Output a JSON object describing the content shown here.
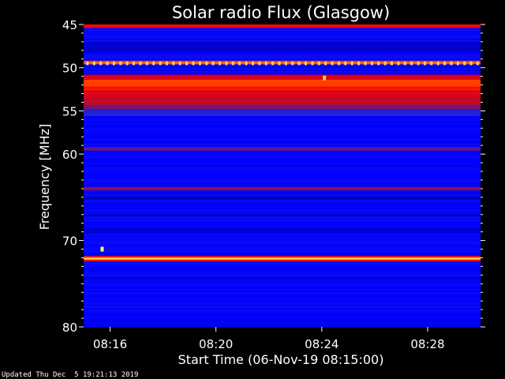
{
  "footer": "Updated Thu Dec  5 19:21:13 2019",
  "chart_data": {
    "type": "heatmap",
    "title": "Solar radio Flux (Glasgow)",
    "xlabel": "Start Time (06-Nov-19 08:15:00)",
    "ylabel": "Frequency [MHz]",
    "x_unit": "minutes after 08:15:00",
    "xlim": [
      0,
      15
    ],
    "ylim": [
      45,
      80
    ],
    "y_axis_inverted": true,
    "x_ticks": [
      {
        "value": 1,
        "label": "08:16"
      },
      {
        "value": 5,
        "label": "08:20"
      },
      {
        "value": 9,
        "label": "08:24"
      },
      {
        "value": 13,
        "label": "08:28"
      }
    ],
    "y_ticks": [
      {
        "value": 45,
        "label": "45"
      },
      {
        "value": 50,
        "label": "50"
      },
      {
        "value": 55,
        "label": "55"
      },
      {
        "value": 60,
        "label": "60"
      },
      {
        "value": 70,
        "label": "70"
      },
      {
        "value": 80,
        "label": "80"
      }
    ],
    "colormap": [
      "#000050",
      "#0000a0",
      "#0000ff",
      "#2a2ad0",
      "#8a1050",
      "#ff0000",
      "#ffa000",
      "#ffff80"
    ],
    "background_level": 0.3,
    "bands": [
      {
        "freq_min": 45.0,
        "freq_max": 45.4,
        "level": 0.72
      },
      {
        "freq_min": 47.0,
        "freq_max": 48.2,
        "level": 0.22
      },
      {
        "freq_min": 49.3,
        "freq_max": 49.7,
        "level": 0.8,
        "dashed": true
      },
      {
        "freq_min": 50.8,
        "freq_max": 51.4,
        "level": 0.66
      },
      {
        "freq_min": 51.4,
        "freq_max": 52.6,
        "level": 0.75
      },
      {
        "freq_min": 52.6,
        "freq_max": 53.5,
        "level": 0.68
      },
      {
        "freq_min": 53.5,
        "freq_max": 54.5,
        "level": 0.63
      },
      {
        "freq_min": 54.5,
        "freq_max": 54.9,
        "level": 0.55
      },
      {
        "freq_min": 54.9,
        "freq_max": 55.6,
        "level": 0.4
      },
      {
        "freq_min": 59.2,
        "freq_max": 59.6,
        "level": 0.5
      },
      {
        "freq_min": 63.8,
        "freq_max": 64.3,
        "level": 0.55
      },
      {
        "freq_min": 65.0,
        "freq_max": 65.3,
        "level": 0.15
      },
      {
        "freq_min": 67.0,
        "freq_max": 67.3,
        "level": 0.15
      },
      {
        "freq_min": 68.7,
        "freq_max": 69.2,
        "level": 0.2
      },
      {
        "freq_min": 71.9,
        "freq_max": 72.0,
        "level": 0.75
      },
      {
        "freq_min": 72.0,
        "freq_max": 72.3,
        "level": 0.98
      },
      {
        "freq_min": 72.3,
        "freq_max": 72.4,
        "level": 0.75
      },
      {
        "freq_min": 74.2,
        "freq_max": 74.5,
        "level": 0.18
      },
      {
        "freq_min": 78.5,
        "freq_max": 80.0,
        "level": 0.28
      }
    ],
    "spots": [
      {
        "time": 0.7,
        "freq": 71.0,
        "level": 0.98
      },
      {
        "time": 9.1,
        "freq": 51.2,
        "level": 0.92
      }
    ]
  }
}
